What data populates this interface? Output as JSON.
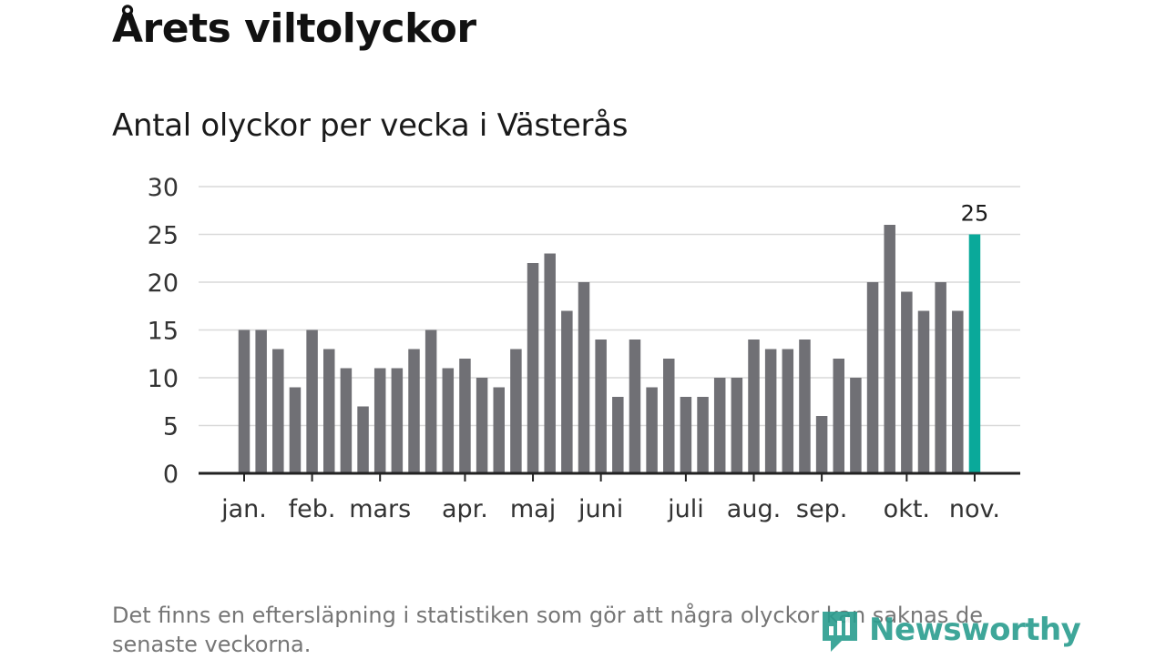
{
  "header": {
    "title": "Årets viltolyckor",
    "subtitle": "Antal olyckor per vecka i Västerås"
  },
  "footer": {
    "note": "Det finns en eftersläpning i statistiken som gör att några olyckor kan saknas de senaste veckorna.",
    "logo_text": "Newsworthy"
  },
  "colors": {
    "bar": "#707075",
    "highlight": "#0aa99a",
    "grid": "#d9d9d9",
    "axis": "#222222",
    "logo": "#2a9d8f"
  },
  "chart_data": {
    "type": "bar",
    "title": "",
    "xlabel": "",
    "ylabel": "",
    "ylim": [
      0,
      30
    ],
    "yticks": [
      0,
      5,
      10,
      15,
      20,
      25,
      30
    ],
    "grid": true,
    "weeks": [
      1,
      2,
      3,
      4,
      5,
      6,
      7,
      8,
      9,
      10,
      11,
      12,
      13,
      14,
      15,
      16,
      17,
      18,
      19,
      20,
      21,
      22,
      23,
      24,
      25,
      26,
      27,
      28,
      29,
      30,
      31,
      32,
      33,
      34,
      35,
      36,
      37,
      38,
      39,
      40,
      41,
      42,
      43,
      44
    ],
    "values": [
      15,
      15,
      13,
      9,
      15,
      13,
      11,
      7,
      11,
      11,
      13,
      15,
      11,
      12,
      10,
      9,
      13,
      22,
      23,
      17,
      20,
      14,
      8,
      14,
      9,
      12,
      8,
      8,
      10,
      10,
      14,
      13,
      13,
      14,
      6,
      12,
      10,
      20,
      26,
      19,
      17,
      20,
      17,
      25
    ],
    "highlight_index": 43,
    "highlight_label": "25",
    "month_labels": [
      {
        "label": "jan.",
        "week": 1
      },
      {
        "label": "feb.",
        "week": 5
      },
      {
        "label": "mars",
        "week": 9
      },
      {
        "label": "apr.",
        "week": 14
      },
      {
        "label": "maj",
        "week": 18
      },
      {
        "label": "juni",
        "week": 22
      },
      {
        "label": "juli",
        "week": 27
      },
      {
        "label": "aug.",
        "week": 31
      },
      {
        "label": "sep.",
        "week": 35
      },
      {
        "label": "okt.",
        "week": 40
      },
      {
        "label": "nov.",
        "week": 44
      }
    ]
  }
}
